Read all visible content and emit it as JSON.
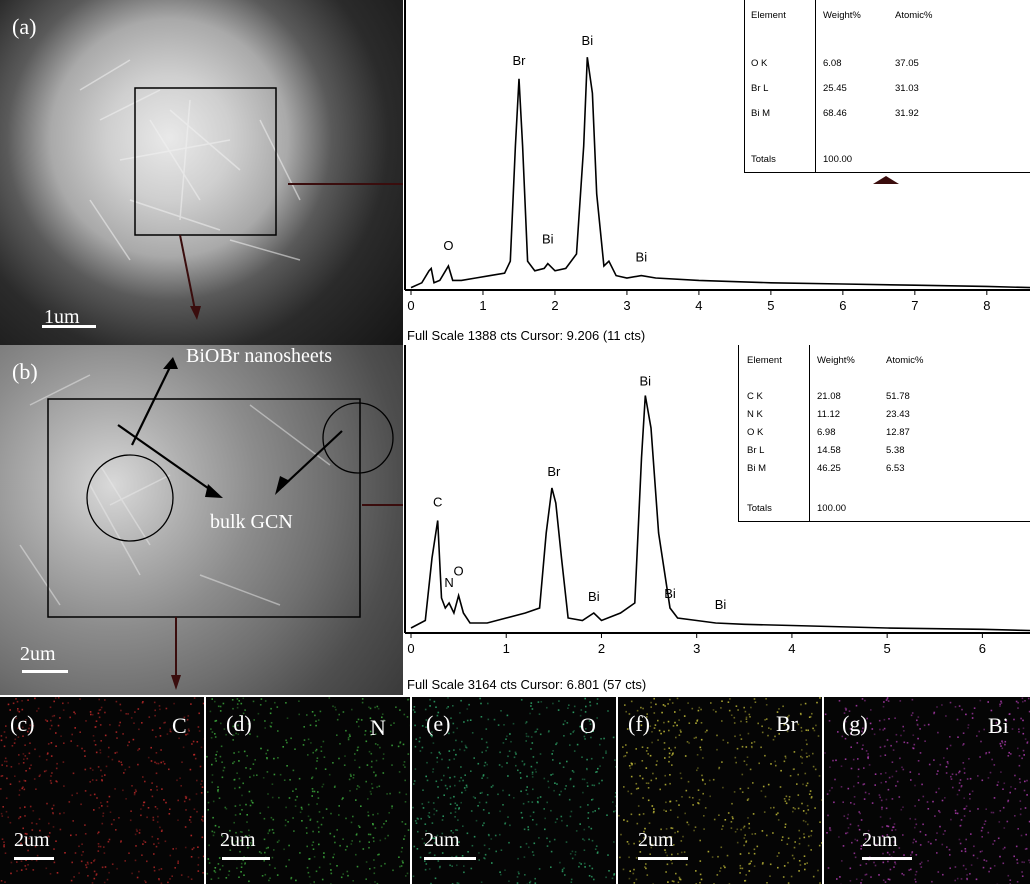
{
  "panel_a": {
    "label": "(a)",
    "scale_label": "1um",
    "eds": {
      "footer": "Full Scale 1388 cts Cursor: 9.206  (11 cts)",
      "x_ticks": [
        "0",
        "1",
        "2",
        "3",
        "4",
        "5",
        "6",
        "7",
        "8"
      ],
      "peak_labels": [
        "O",
        "Br",
        "Bi",
        "Bi",
        "Bi"
      ],
      "table": {
        "headers": [
          "Element",
          "Weight%",
          "Atomic%"
        ],
        "rows": [
          [
            "O K",
            "6.08",
            "37.05"
          ],
          [
            "Br L",
            "25.45",
            "31.03"
          ],
          [
            "Bi M",
            "68.46",
            "31.92"
          ]
        ],
        "totals": [
          "Totals",
          "100.00"
        ]
      }
    }
  },
  "panel_b": {
    "label": "(b)",
    "scale_label": "2um",
    "annot_nanosheets": "BiOBr nanosheets",
    "annot_gcn": "bulk GCN",
    "eds": {
      "footer": "Full Scale 3164 cts Cursor: 6.801  (57 cts)",
      "x_ticks": [
        "0",
        "1",
        "2",
        "3",
        "4",
        "5",
        "6"
      ],
      "peak_labels": [
        "C",
        "N",
        "O",
        "Br",
        "Bi",
        "Bi",
        "Bi",
        "Bi"
      ],
      "table": {
        "headers": [
          "Element",
          "Weight%",
          "Atomic%"
        ],
        "rows": [
          [
            "C K",
            "21.08",
            "51.78"
          ],
          [
            "N K",
            "11.12",
            "23.43"
          ],
          [
            "O K",
            "6.98",
            "12.87"
          ],
          [
            "Br L",
            "14.58",
            "5.38"
          ],
          [
            "Bi M",
            "46.25",
            "6.53"
          ]
        ],
        "totals": [
          "Totals",
          "100.00"
        ]
      }
    }
  },
  "maps": [
    {
      "label": "(c)",
      "element": "C",
      "scale": "2um",
      "color": "#c22a2a"
    },
    {
      "label": "(d)",
      "element": "N",
      "scale": "2um",
      "color": "#3fb03f"
    },
    {
      "label": "(e)",
      "element": "O",
      "scale": "2um",
      "color": "#2fa86a"
    },
    {
      "label": "(f)",
      "element": "Br",
      "scale": "2um",
      "color": "#c8c23a"
    },
    {
      "label": "(g)",
      "element": "Bi",
      "scale": "2um",
      "color": "#b03cb0"
    }
  ],
  "chart_data": [
    {
      "type": "line",
      "xlim": [
        0,
        8.6
      ],
      "x": [
        0.0,
        0.15,
        0.25,
        0.28,
        0.32,
        0.4,
        0.48,
        0.52,
        0.58,
        0.7,
        0.9,
        1.1,
        1.3,
        1.38,
        1.45,
        1.5,
        1.55,
        1.62,
        1.72,
        1.85,
        1.9,
        2.0,
        2.15,
        2.3,
        2.4,
        2.45,
        2.52,
        2.58,
        2.68,
        2.75,
        2.85,
        3.0,
        3.2,
        3.4,
        4.0,
        5.0,
        6.0,
        7.0,
        8.0,
        8.6
      ],
      "y": [
        0.01,
        0.03,
        0.08,
        0.09,
        0.03,
        0.04,
        0.08,
        0.1,
        0.04,
        0.04,
        0.05,
        0.06,
        0.07,
        0.12,
        0.6,
        0.88,
        0.6,
        0.12,
        0.08,
        0.09,
        0.11,
        0.08,
        0.09,
        0.15,
        0.6,
        0.97,
        0.82,
        0.4,
        0.1,
        0.12,
        0.06,
        0.05,
        0.06,
        0.05,
        0.04,
        0.03,
        0.025,
        0.02,
        0.015,
        0.01
      ]
    },
    {
      "type": "line",
      "xlim": [
        0,
        6.5
      ],
      "x": [
        0.0,
        0.15,
        0.22,
        0.28,
        0.32,
        0.36,
        0.4,
        0.45,
        0.5,
        0.55,
        0.62,
        0.8,
        1.0,
        1.2,
        1.35,
        1.42,
        1.48,
        1.52,
        1.58,
        1.65,
        1.8,
        1.92,
        2.0,
        2.2,
        2.35,
        2.42,
        2.46,
        2.52,
        2.6,
        2.72,
        2.8,
        3.0,
        3.2,
        3.5,
        4.0,
        5.0,
        6.0,
        6.5
      ],
      "y": [
        0.02,
        0.05,
        0.3,
        0.45,
        0.14,
        0.1,
        0.12,
        0.08,
        0.15,
        0.08,
        0.04,
        0.04,
        0.06,
        0.08,
        0.1,
        0.4,
        0.58,
        0.52,
        0.3,
        0.06,
        0.05,
        0.08,
        0.05,
        0.08,
        0.12,
        0.7,
        0.95,
        0.82,
        0.4,
        0.1,
        0.06,
        0.05,
        0.04,
        0.035,
        0.03,
        0.02,
        0.015,
        0.01
      ]
    }
  ]
}
